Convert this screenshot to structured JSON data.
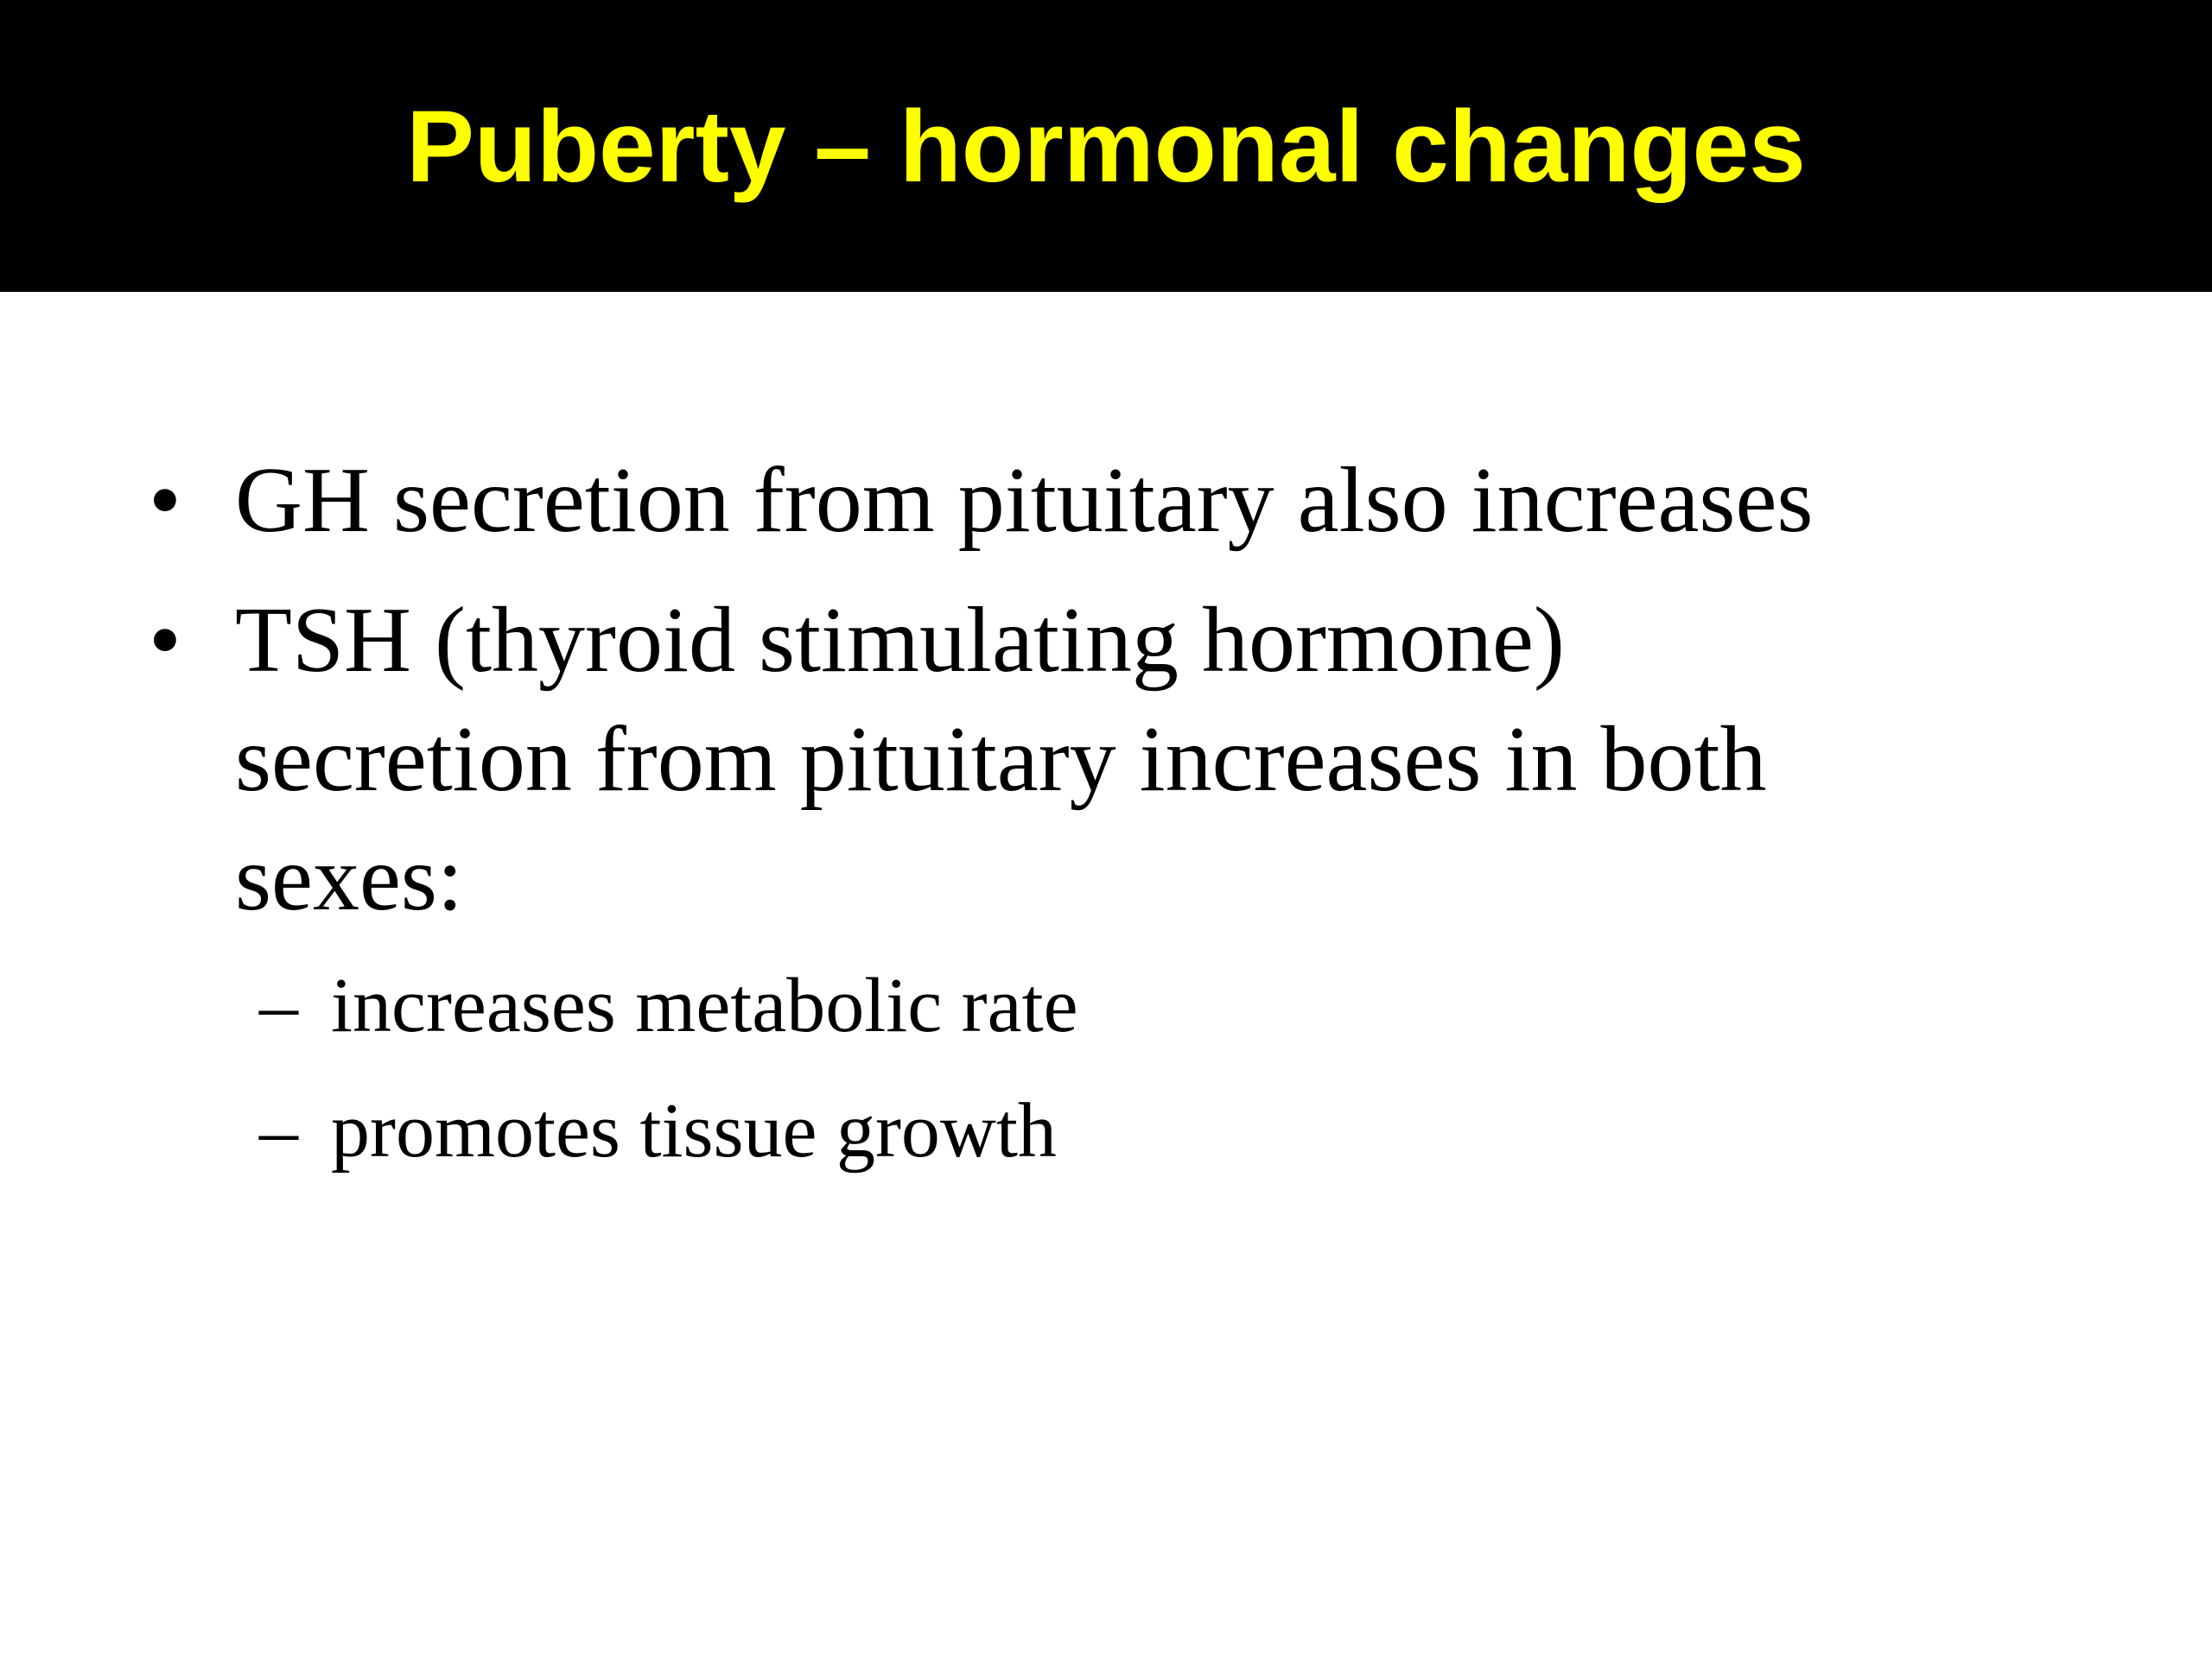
{
  "slide": {
    "title": "Puberty – hormonal changes",
    "bullets": [
      {
        "marker": "•",
        "lines": [
          "GH secretion from pituitary also increases"
        ]
      },
      {
        "marker": "•",
        "lines": [
          "TSH (thyroid stimulating hormone)",
          "secretion from pituitary increases in both",
          "sexes:"
        ],
        "sub": [
          {
            "marker": "–",
            "text": "increases metabolic rate"
          },
          {
            "marker": "–",
            "text": "promotes tissue growth"
          }
        ]
      }
    ]
  },
  "colors": {
    "title_bar": "#000000",
    "title_text": "#ffff00",
    "body_text": "#000000",
    "background": "#ffffff"
  }
}
